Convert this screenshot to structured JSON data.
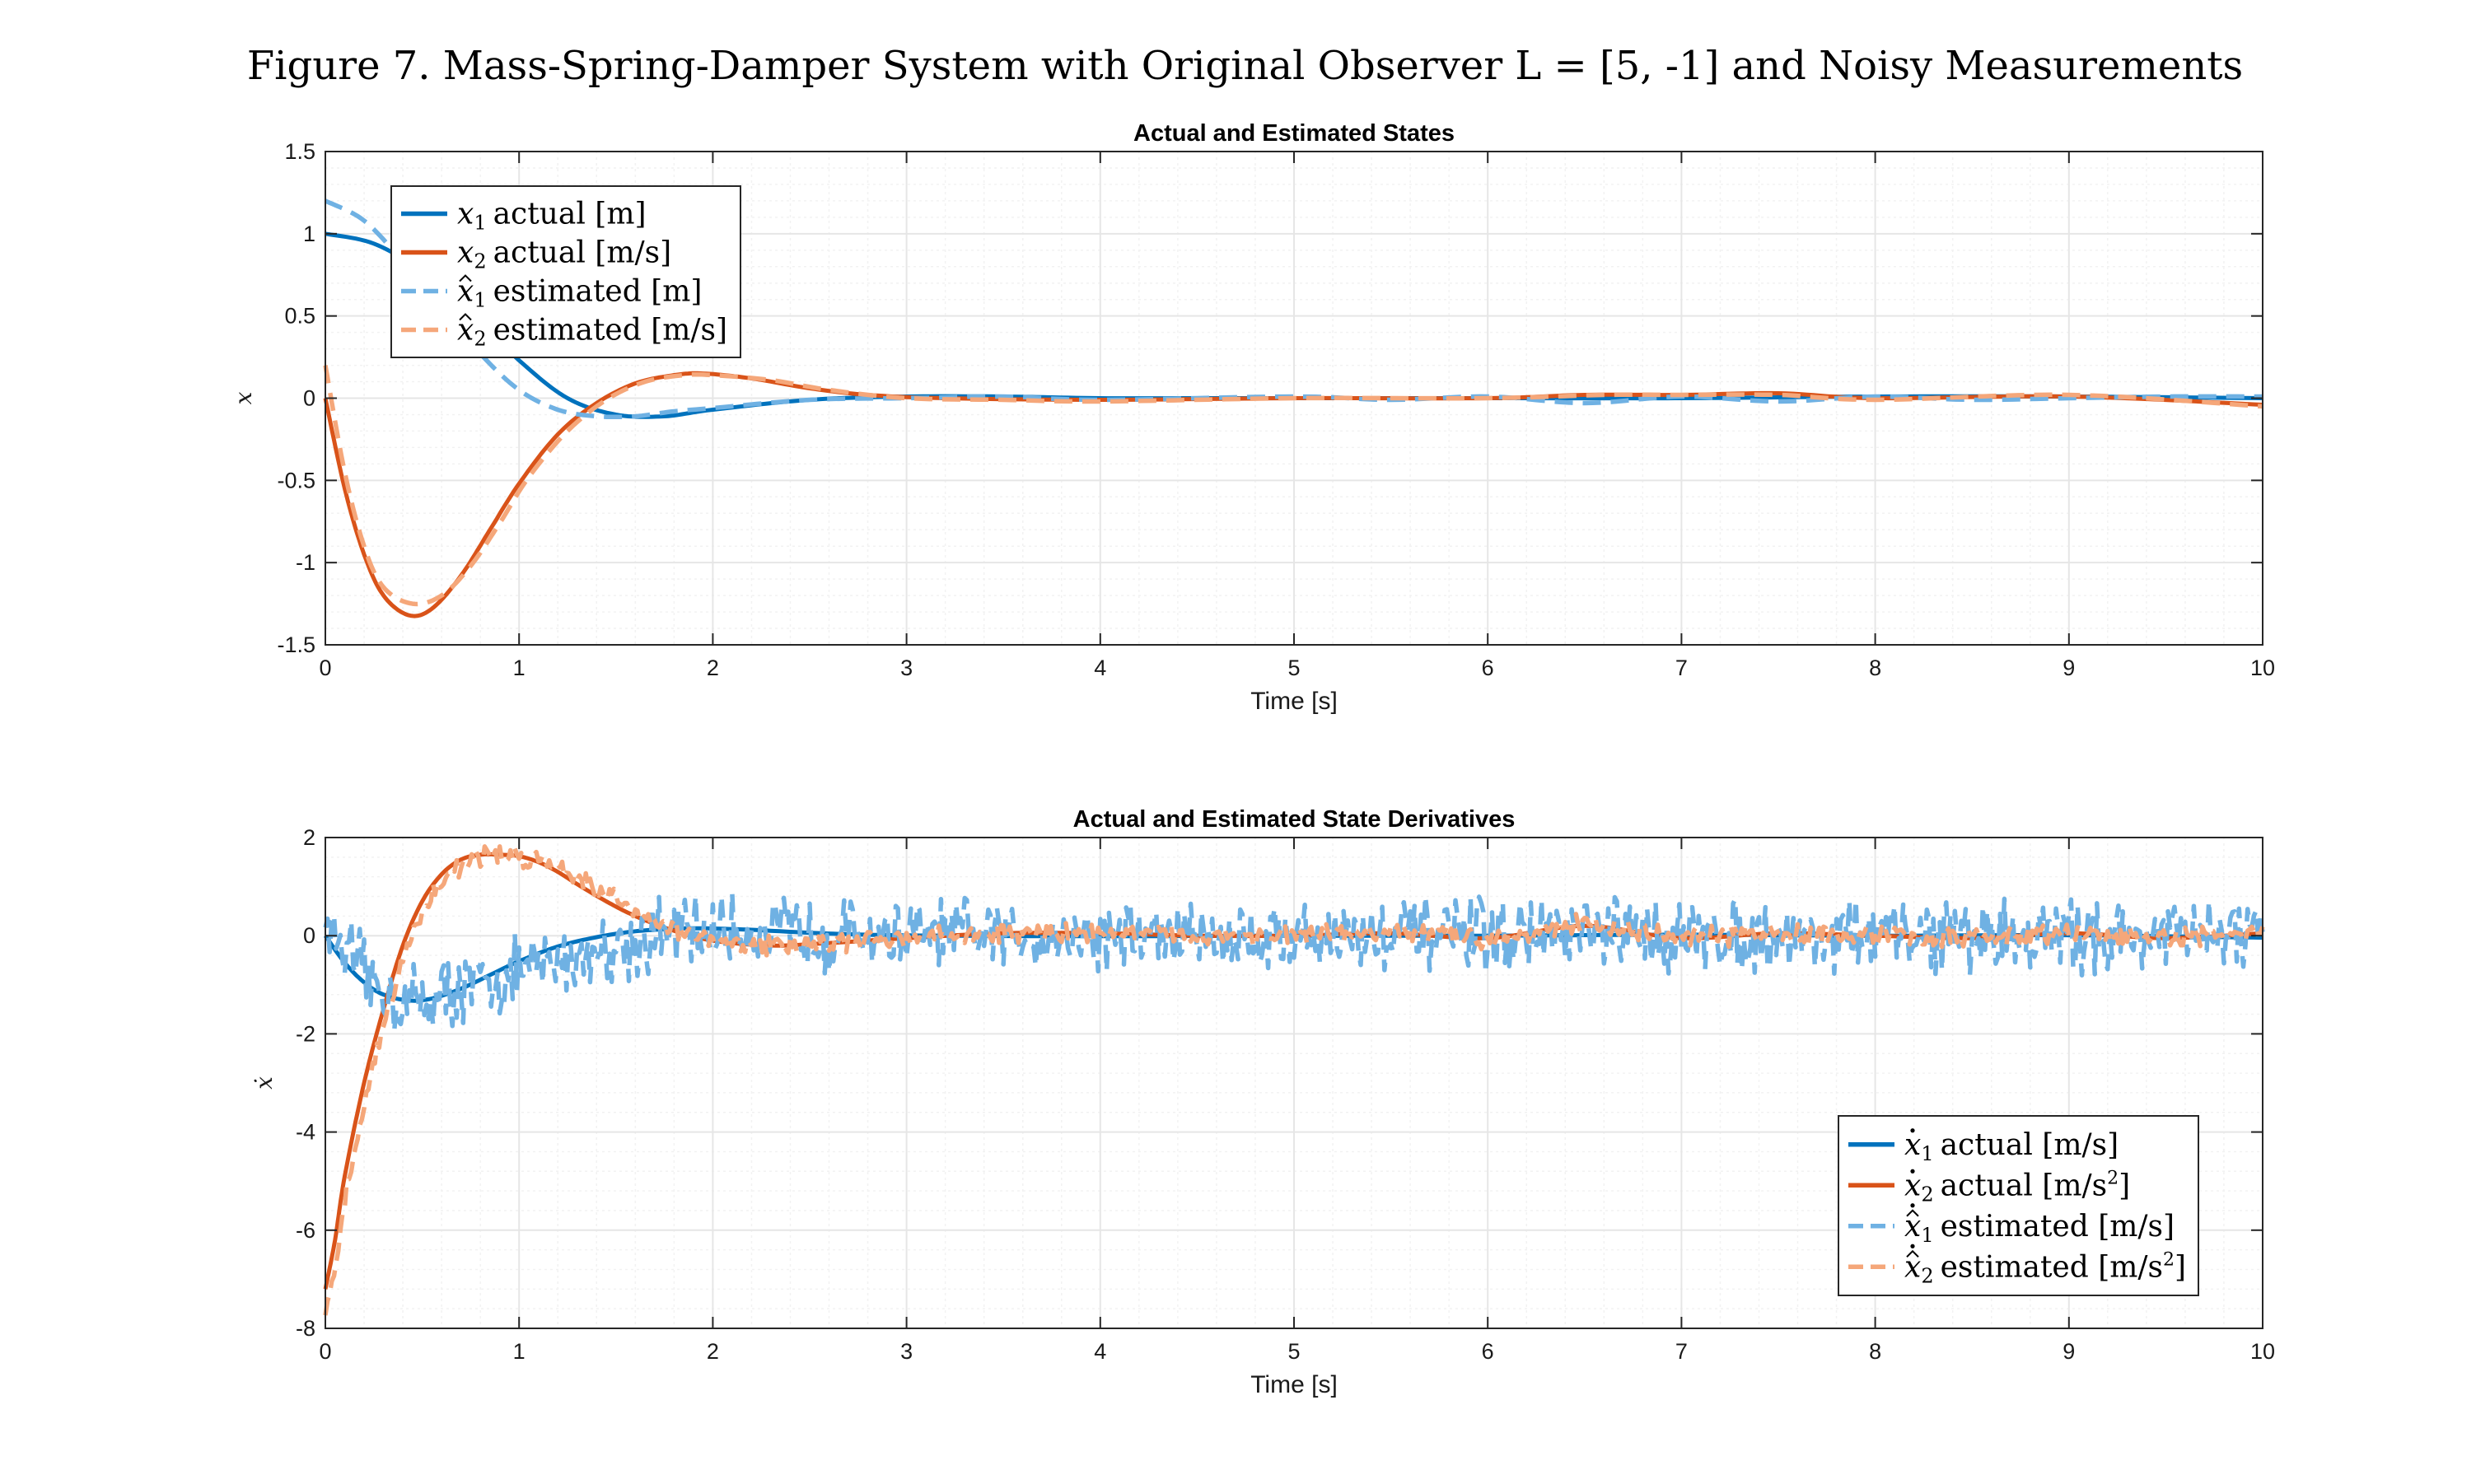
{
  "figure_title": "Figure 7. Mass-Spring-Damper System with Original Observer L = [5, -1] and Noisy Measurements",
  "colors": {
    "x1_actual": "#0072BD",
    "x2_actual": "#D95319",
    "x1_estimated": "#6FB1E3",
    "x2_estimated": "#F5A77A",
    "grid_major": "#e6e6e6",
    "grid_minor": "#f2f2f2",
    "axis": "#262626"
  },
  "chart_data": [
    {
      "type": "line",
      "title": "Actual and Estimated States",
      "xlabel": "Time [s]",
      "ylabel": "x",
      "xlim": [
        0,
        10
      ],
      "ylim": [
        -1.5,
        1.5
      ],
      "xticks": [
        0,
        1,
        2,
        3,
        4,
        5,
        6,
        7,
        8,
        9,
        10
      ],
      "yticks": [
        -1.5,
        -1,
        -0.5,
        0,
        0.5,
        1,
        1.5
      ],
      "grid": true,
      "minor_grid": true,
      "legend_location": "top-left",
      "series": [
        {
          "name": "x1 actual [m]",
          "legend": {
            "var": "x",
            "sub": "1",
            "hat": false,
            "dot": false,
            "text": "actual [m]"
          },
          "style": "solid",
          "color": "#0072BD",
          "x": [
            0,
            0.25,
            0.5,
            0.75,
            1.0,
            1.25,
            1.5,
            1.75,
            2.0,
            2.5,
            3.0,
            3.5,
            4.0,
            4.5,
            5.0,
            6.0,
            7.0,
            8.0,
            9.0,
            10.0
          ],
          "y": [
            1.0,
            0.94,
            0.77,
            0.52,
            0.23,
            0.0,
            -0.1,
            -0.11,
            -0.07,
            -0.01,
            0.01,
            0.01,
            0.0,
            0.0,
            0.0,
            0.0,
            0.0,
            0.01,
            0.01,
            0.0
          ]
        },
        {
          "name": "x2 actual [m/s]",
          "legend": {
            "var": "x",
            "sub": "2",
            "hat": false,
            "dot": false,
            "text": "actual [m/s]"
          },
          "style": "solid",
          "color": "#D95319",
          "x": [
            0,
            0.1,
            0.2,
            0.3,
            0.43,
            0.55,
            0.7,
            0.85,
            1.0,
            1.2,
            1.4,
            1.6,
            1.8,
            1.95,
            2.2,
            2.5,
            2.8,
            3.2,
            4.0,
            5.0,
            6.0,
            6.5,
            7.0,
            7.5,
            8.0,
            9.0,
            10.0
          ],
          "y": [
            0.0,
            -0.55,
            -0.95,
            -1.2,
            -1.32,
            -1.28,
            -1.08,
            -0.8,
            -0.52,
            -0.22,
            -0.03,
            0.09,
            0.14,
            0.15,
            0.12,
            0.06,
            0.02,
            0.0,
            -0.01,
            0.0,
            0.0,
            0.02,
            0.02,
            0.03,
            0.0,
            0.01,
            -0.04
          ]
        },
        {
          "name": "x̂1 estimated [m]",
          "legend": {
            "var": "x",
            "sub": "1",
            "hat": true,
            "dot": false,
            "text": "estimated [m]"
          },
          "style": "dashed",
          "color": "#6FB1E3",
          "x": [
            0,
            0.2,
            0.4,
            0.6,
            0.8,
            1.0,
            1.2,
            1.4,
            1.6,
            1.8,
            2.0,
            2.5,
            3.0,
            3.5,
            4.0,
            5.0,
            5.5,
            6.0,
            6.5,
            7.0,
            7.5,
            8.0,
            8.5,
            9.0,
            9.5,
            10.0
          ],
          "y": [
            1.2,
            1.08,
            0.83,
            0.55,
            0.27,
            0.05,
            -0.07,
            -0.11,
            -0.11,
            -0.08,
            -0.06,
            -0.01,
            0.0,
            0.01,
            -0.01,
            0.01,
            -0.01,
            0.01,
            -0.03,
            0.01,
            -0.02,
            0.01,
            -0.01,
            0.0,
            0.01,
            0.01
          ]
        },
        {
          "name": "x̂2 estimated [m/s]",
          "legend": {
            "var": "x",
            "sub": "2",
            "hat": true,
            "dot": false,
            "text": "estimated [m/s]"
          },
          "style": "dashed",
          "color": "#F5A77A",
          "x": [
            0,
            0.1,
            0.2,
            0.3,
            0.45,
            0.6,
            0.75,
            0.9,
            1.05,
            1.25,
            1.45,
            1.65,
            1.85,
            2.0,
            2.3,
            2.6,
            3.0,
            3.5,
            4.0,
            5.0,
            6.0,
            6.6,
            7.0,
            7.5,
            8.0,
            9.0,
            10.0
          ],
          "y": [
            0.2,
            -0.45,
            -0.9,
            -1.15,
            -1.25,
            -1.2,
            -1.02,
            -0.76,
            -0.48,
            -0.2,
            -0.01,
            0.1,
            0.14,
            0.14,
            0.11,
            0.05,
            0.0,
            -0.01,
            -0.02,
            0.0,
            0.0,
            0.02,
            0.02,
            0.02,
            -0.01,
            0.02,
            -0.05
          ]
        }
      ]
    },
    {
      "type": "line",
      "title": "Actual and Estimated State Derivatives",
      "xlabel": "Time [s]",
      "ylabel": "ẋ",
      "xlim": [
        0,
        10
      ],
      "ylim": [
        -8,
        2
      ],
      "xticks": [
        0,
        1,
        2,
        3,
        4,
        5,
        6,
        7,
        8,
        9,
        10
      ],
      "yticks": [
        -8,
        -6,
        -4,
        -2,
        0,
        2
      ],
      "grid": true,
      "minor_grid": true,
      "legend_location": "bottom-right",
      "series": [
        {
          "name": "ẋ1 actual [m/s]",
          "legend": {
            "var": "x",
            "sub": "1",
            "hat": false,
            "dot": true,
            "text": "actual [m/s]"
          },
          "style": "solid",
          "color": "#0072BD",
          "x": [
            0,
            0.1,
            0.2,
            0.3,
            0.43,
            0.55,
            0.7,
            0.85,
            1.0,
            1.2,
            1.4,
            1.6,
            1.8,
            1.95,
            2.2,
            2.5,
            2.8,
            3.2,
            4.0,
            5.0,
            6.0,
            7.0,
            8.0,
            9.0,
            10.0
          ],
          "y": [
            0.0,
            -0.55,
            -0.95,
            -1.2,
            -1.32,
            -1.28,
            -1.08,
            -0.8,
            -0.52,
            -0.22,
            -0.03,
            0.09,
            0.14,
            0.15,
            0.12,
            0.06,
            0.02,
            0.0,
            -0.01,
            0.0,
            0.0,
            0.02,
            0.0,
            0.01,
            -0.04
          ]
        },
        {
          "name": "ẋ2 actual [m/s²]",
          "legend": {
            "var": "x",
            "sub": "2",
            "hat": false,
            "dot": true,
            "text": "actual [m/s",
            "sup": "2",
            "close": "]"
          },
          "style": "solid",
          "color": "#D95319",
          "x": [
            0,
            0.05,
            0.1,
            0.2,
            0.3,
            0.4,
            0.5,
            0.6,
            0.7,
            0.8,
            0.9,
            1.0,
            1.1,
            1.2,
            1.3,
            1.45,
            1.6,
            1.8,
            2.0,
            2.3,
            2.6,
            3.0,
            3.5,
            4.0,
            4.5,
            5.0,
            5.5,
            6.0,
            6.5,
            7.0,
            7.5,
            8.0,
            8.5,
            9.0,
            9.5,
            10.0
          ],
          "y": [
            -7.2,
            -6.2,
            -4.9,
            -3.0,
            -1.5,
            -0.2,
            0.7,
            1.25,
            1.55,
            1.65,
            1.65,
            1.62,
            1.5,
            1.3,
            1.05,
            0.7,
            0.4,
            0.1,
            -0.1,
            -0.2,
            -0.15,
            -0.05,
            0.05,
            0.05,
            0.0,
            0.0,
            0.05,
            -0.05,
            0.2,
            -0.05,
            0.05,
            0.0,
            -0.05,
            0.05,
            -0.05,
            0.05
          ]
        },
        {
          "name": "ẋ̂1 estimated [m/s]",
          "legend": {
            "var": "x",
            "sub": "1",
            "hat": true,
            "dot": true,
            "text": "estimated [m/s]"
          },
          "style": "dashed",
          "color": "#6FB1E3",
          "x": [
            0,
            0.1,
            0.2,
            0.3,
            0.4,
            0.5,
            0.6,
            0.8,
            1.0,
            1.2,
            1.5,
            1.8,
            2.0,
            2.5,
            3.0,
            3.5,
            4.0,
            4.5,
            5.0,
            5.5,
            6.0,
            6.5,
            7.0,
            7.5,
            8.0,
            8.5,
            9.0,
            9.5,
            10.0
          ],
          "y": [
            0.3,
            -0.3,
            -0.8,
            -1.15,
            -1.35,
            -1.3,
            -1.2,
            -1.0,
            -0.75,
            -0.5,
            -0.2,
            0.05,
            0.1,
            0.05,
            0.0,
            0.0,
            0.0,
            0.0,
            0.0,
            0.0,
            0.0,
            0.0,
            0.0,
            0.0,
            0.0,
            0.0,
            0.0,
            0.0,
            0.0
          ],
          "noise_amplitude": 0.55
        },
        {
          "name": "ẋ̂2 estimated [m/s²]",
          "legend": {
            "var": "x",
            "sub": "2",
            "hat": true,
            "dot": true,
            "text": "estimated [m/s",
            "sup": "2",
            "close": "]"
          },
          "style": "dashed",
          "color": "#F5A77A",
          "x": [
            0,
            0.05,
            0.1,
            0.2,
            0.3,
            0.4,
            0.5,
            0.6,
            0.7,
            0.8,
            0.9,
            1.0,
            1.1,
            1.2,
            1.3,
            1.45,
            1.6,
            1.8,
            2.0,
            2.3,
            2.6,
            3.0,
            3.5,
            4.0,
            4.5,
            5.0,
            5.5,
            6.0,
            6.5,
            7.0,
            7.5,
            8.0,
            8.5,
            9.0,
            9.5,
            10.0
          ],
          "y": [
            -7.8,
            -6.8,
            -5.4,
            -3.4,
            -1.8,
            -0.5,
            0.5,
            1.1,
            1.45,
            1.6,
            1.65,
            1.6,
            1.55,
            1.45,
            1.2,
            0.85,
            0.5,
            0.15,
            -0.15,
            -0.2,
            -0.15,
            -0.05,
            0.05,
            0.05,
            0.0,
            0.0,
            0.05,
            -0.05,
            0.25,
            -0.05,
            0.05,
            0.0,
            -0.05,
            0.05,
            -0.05,
            0.05
          ],
          "noise_amplitude": 0.15
        }
      ]
    }
  ]
}
